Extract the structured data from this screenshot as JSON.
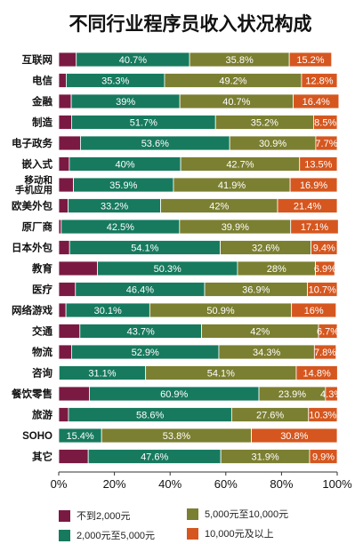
{
  "chart_data": {
    "type": "bar",
    "stacked": true,
    "orientation": "horizontal",
    "percent_stacked": true,
    "title": "不同行业程序员收入状况构成",
    "categories": [
      "互联网",
      "电信",
      "金融",
      "制造",
      "电子政务",
      "嵌入式",
      "移动和手机应用",
      "欧美外包",
      "原厂商",
      "日本外包",
      "教育",
      "医疗",
      "网络游戏",
      "交通",
      "物流",
      "咨询",
      "餐饮零售",
      "旅游",
      "SOHO",
      "其它"
    ],
    "category_display": [
      "互联网",
      "电信",
      "金融",
      "制造",
      "电子政务",
      "嵌入式",
      [
        "移动和",
        "手机应用"
      ],
      "欧美外包",
      "原厂商",
      "日本外包",
      "教育",
      "医疗",
      "网络游戏",
      "交通",
      "物流",
      "咨询",
      "餐饮零售",
      "旅游",
      "SOHO",
      "其它"
    ],
    "series": [
      {
        "name": "不到2,000元",
        "color": "#7a1a43",
        "values": [
          6.3,
          2.7,
          4.5,
          4.6,
          7.8,
          3.8,
          5.3,
          3.4,
          0.9,
          3.9,
          13.9,
          6.0,
          2.6,
          7.6,
          4.6,
          0.1,
          11.0,
          3.5,
          0.0,
          10.6
        ],
        "labels": [
          "",
          "",
          "",
          "",
          "",
          "",
          "",
          "",
          "",
          "",
          "",
          "",
          "",
          "",
          "",
          "",
          "",
          "",
          "",
          ""
        ]
      },
      {
        "name": "2,000元至5,000元",
        "color": "#177a5e",
        "values": [
          40.7,
          35.3,
          39.0,
          51.7,
          53.6,
          40.0,
          35.9,
          33.2,
          42.5,
          54.1,
          50.3,
          46.4,
          30.1,
          43.7,
          52.9,
          31.1,
          60.9,
          58.6,
          15.4,
          47.6
        ],
        "labels": [
          "40.7%",
          "35.3%",
          "39%",
          "51.7%",
          "53.6%",
          "40%",
          "35.9%",
          "33.2%",
          "42.5%",
          "54.1%",
          "50.3%",
          "46.4%",
          "30.1%",
          "43.7%",
          "52.9%",
          "31.1%",
          "60.9%",
          "58.6%",
          "15.4%",
          "47.6%"
        ]
      },
      {
        "name": "5,000元至10,000元",
        "color": "#7b7f31",
        "values": [
          35.8,
          49.2,
          40.7,
          35.2,
          30.9,
          42.7,
          41.9,
          42.0,
          39.9,
          32.6,
          28.0,
          36.9,
          50.9,
          42.0,
          34.3,
          54.1,
          23.9,
          27.6,
          53.8,
          31.9
        ],
        "labels": [
          "35.8%",
          "49.2%",
          "40.7%",
          "35.2%",
          "30.9%",
          "42.7%",
          "41.9%",
          "42%",
          "39.9%",
          "32.6%",
          "28%",
          "36.9%",
          "50.9%",
          "42%",
          "34.3%",
          "54.1%",
          "23.9%",
          "27.6%",
          "53.8%",
          "31.9%"
        ]
      },
      {
        "name": "10,000元及以上",
        "color": "#d5571f",
        "values": [
          15.2,
          12.8,
          16.4,
          8.5,
          7.7,
          13.5,
          16.9,
          21.4,
          17.1,
          9.4,
          6.9,
          10.7,
          16.0,
          6.7,
          7.8,
          14.8,
          4.3,
          10.3,
          30.8,
          9.9
        ],
        "labels": [
          "15.2%",
          "12.8%",
          "16.4%",
          "8.5%",
          "7.7%",
          "13.5%",
          "16.9%",
          "21.4%",
          "17.1%",
          "9.4%",
          "6.9%",
          "10.7%",
          "16%",
          "6.7%",
          "7.8%",
          "14.8%",
          "4.3%",
          "10.3%",
          "30.8%",
          "9.9%"
        ]
      }
    ],
    "xlim": [
      0,
      100
    ],
    "xticks": [
      "0%",
      "20%",
      "40%",
      "60%",
      "80%",
      "100%"
    ],
    "legend_position": "bottom",
    "grid": false
  }
}
